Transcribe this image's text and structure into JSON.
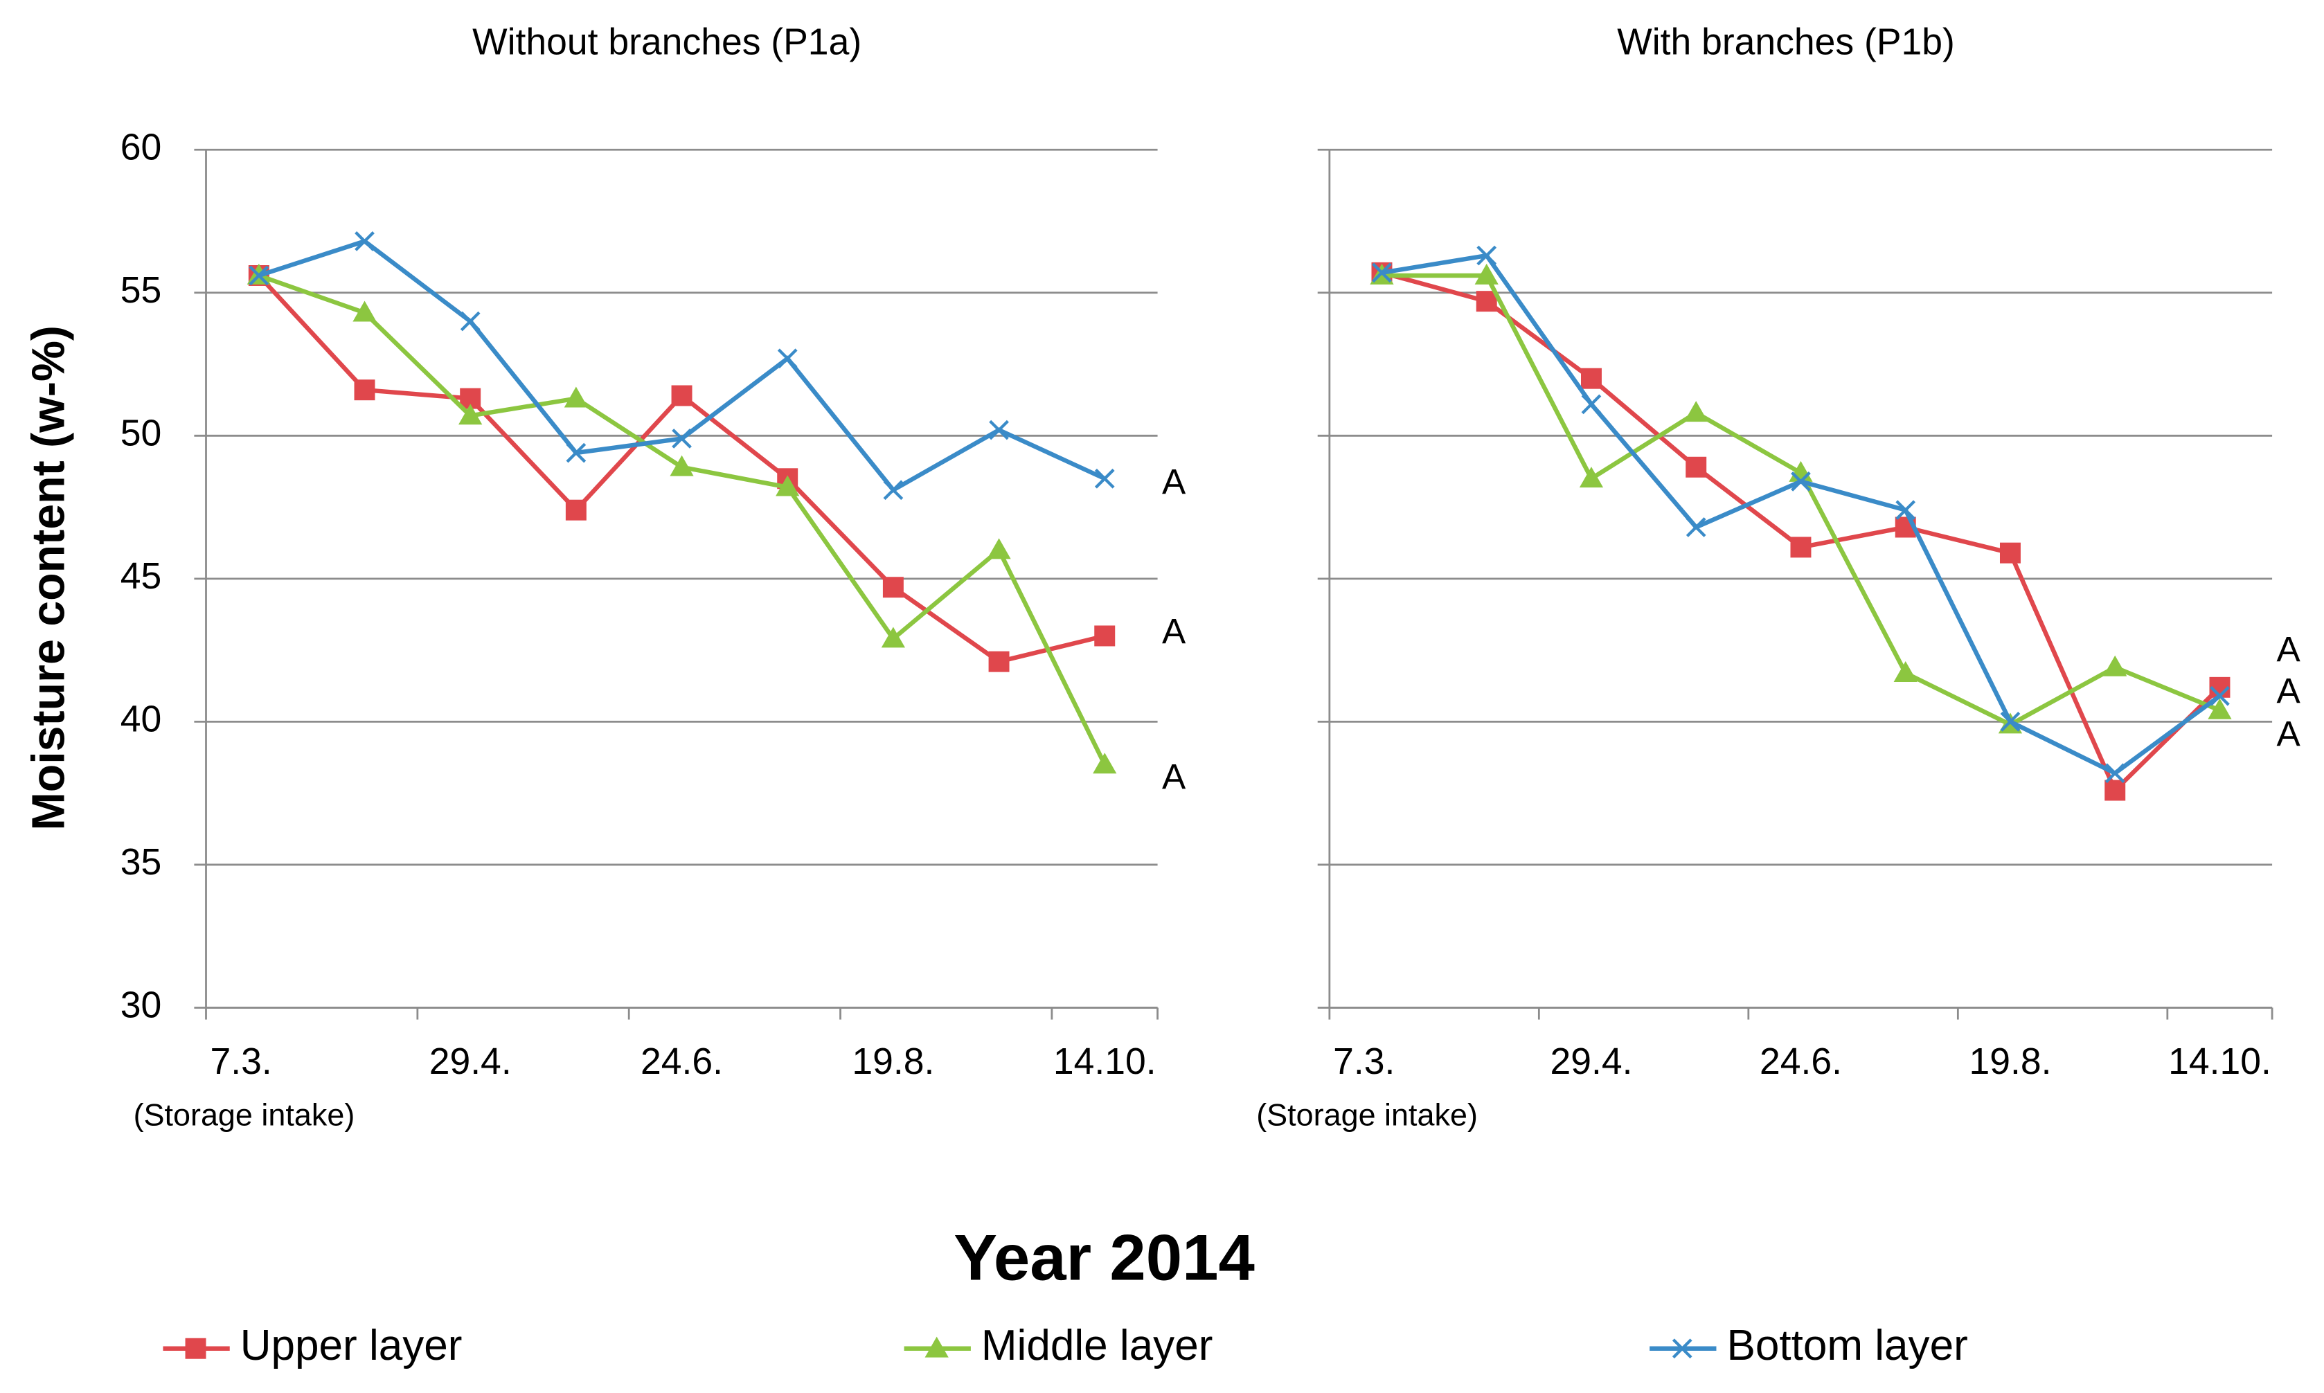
{
  "chart_data": [
    {
      "type": "line",
      "title": "Without branches (P1a)",
      "ylabel": "Moisture content (w-%)",
      "xlabel": "Year 2014",
      "categories": [
        "7.3.",
        null,
        "29.4.",
        null,
        "24.6.",
        null,
        "19.8.",
        null,
        "14.10."
      ],
      "category_note": "(Storage intake)",
      "ylim": [
        30,
        60
      ],
      "yticks": [
        30,
        35,
        40,
        45,
        50,
        55,
        60
      ],
      "grid": true,
      "show_ytick_labels": true,
      "series": [
        {
          "name": "Upper layer",
          "color": "#e0474c",
          "marker": "square",
          "values": [
            55.6,
            51.6,
            51.3,
            47.4,
            51.4,
            48.5,
            44.7,
            42.1,
            43.0
          ]
        },
        {
          "name": "Middle layer",
          "color": "#8cc640",
          "marker": "triangle",
          "values": [
            55.6,
            54.3,
            50.7,
            51.3,
            48.9,
            48.2,
            42.9,
            46.0,
            38.5
          ]
        },
        {
          "name": "Bottom layer",
          "color": "#3a8bc8",
          "marker": "x",
          "values": [
            55.6,
            56.8,
            54.0,
            49.4,
            49.9,
            52.7,
            48.1,
            50.2,
            48.5
          ]
        }
      ],
      "annotations": [
        {
          "text": "A",
          "color": "#3a8bc8"
        },
        {
          "text": "A",
          "color": "#e0474c"
        },
        {
          "text": "A",
          "color": "#8cc640"
        }
      ]
    },
    {
      "type": "line",
      "title": "With branches (P1b)",
      "categories": [
        "7.3.",
        null,
        "29.4.",
        null,
        "24.6.",
        null,
        "19.8.",
        null,
        "14.10."
      ],
      "category_note": "(Storage intake)",
      "ylim": [
        30,
        60
      ],
      "yticks": [
        30,
        35,
        40,
        45,
        50,
        55,
        60
      ],
      "grid": true,
      "show_ytick_labels": false,
      "series": [
        {
          "name": "Upper layer",
          "color": "#e0474c",
          "marker": "square",
          "values": [
            55.7,
            54.7,
            52.0,
            48.9,
            46.1,
            46.8,
            45.9,
            37.6,
            41.2
          ]
        },
        {
          "name": "Middle layer",
          "color": "#8cc640",
          "marker": "triangle",
          "values": [
            55.6,
            55.6,
            48.5,
            50.8,
            48.7,
            41.7,
            39.9,
            41.9,
            40.4
          ]
        },
        {
          "name": "Bottom layer",
          "color": "#3a8bc8",
          "marker": "x",
          "values": [
            55.7,
            56.3,
            51.1,
            46.8,
            48.4,
            47.4,
            40.0,
            38.2,
            40.9
          ]
        }
      ],
      "annotations": [
        {
          "text": "A",
          "color": "#e0474c"
        },
        {
          "text": "A",
          "color": "#3a8bc8"
        },
        {
          "text": "A",
          "color": "#8cc640"
        }
      ]
    }
  ]
}
